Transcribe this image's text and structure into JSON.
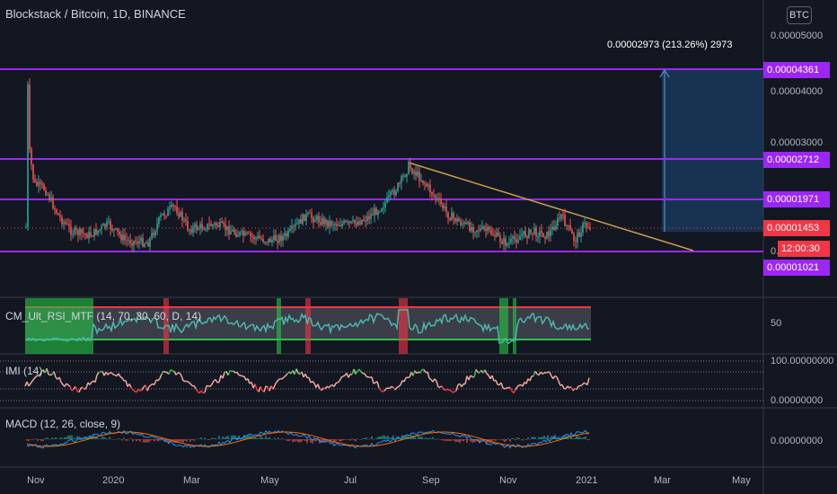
{
  "header": {
    "symbol": "Blockstack / Bitcoin, 1D, BINANCE",
    "currency_button": "BTC"
  },
  "measure": {
    "label": "0.00002973 (213.26%) 2973"
  },
  "price_axis": {
    "labels": [
      "0.00005000",
      "0.00004000",
      "0.00003000"
    ],
    "partial_label": "0."
  },
  "levels": {
    "l1": "0.00004361",
    "l2": "0.00002712",
    "l3": "0.00001971",
    "l4": "0.00001021"
  },
  "current": {
    "price": "0.00001453",
    "countdown": "12:00:30"
  },
  "indicators": {
    "rsi": {
      "label": "CM_Ult_RSI_MTF (14, 70, 30, 60, D, 14)",
      "axis": "50"
    },
    "imi": {
      "label": "IMI (14)",
      "axis_top": "100.00000000",
      "axis_bottom": "0.00000000"
    },
    "macd": {
      "label": "MACD (12, 26, close, 9)",
      "axis": "0.00000000"
    }
  },
  "time_axis": [
    "Nov",
    "2020",
    "Mar",
    "May",
    "Jul",
    "Sep",
    "Nov",
    "2021",
    "Mar",
    "May"
  ],
  "colors": {
    "background": "#131722",
    "level_line": "#9c27f5",
    "trendline": "#c8a04a",
    "rsi_line": "#4db6ac",
    "up": "#26a69a",
    "down": "#ef5350",
    "current_price": "#f23645",
    "measure_box": "#2962ff"
  }
}
